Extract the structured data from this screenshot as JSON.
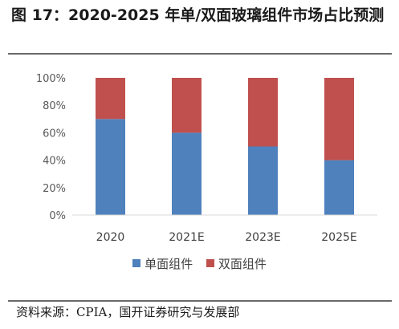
{
  "title": "图 17：2020-2025 年单/双面玻璃组件市场占比预测",
  "source": "资料来源：CPIA，国开证券研究与发展部",
  "chart_data": {
    "type": "bar",
    "stacked": true,
    "categories": [
      "2020",
      "2021E",
      "2023E",
      "2025E"
    ],
    "series": [
      {
        "name": "单面组件",
        "values": [
          70,
          60,
          50,
          40
        ],
        "color": "#4F81BD"
      },
      {
        "name": "双面组件",
        "values": [
          30,
          40,
          50,
          60
        ],
        "color": "#C0504D"
      }
    ],
    "yticks": [
      "0%",
      "20%",
      "40%",
      "60%",
      "80%",
      "100%"
    ],
    "ylim": [
      0,
      100
    ],
    "grid": false,
    "legend": "bottom"
  }
}
